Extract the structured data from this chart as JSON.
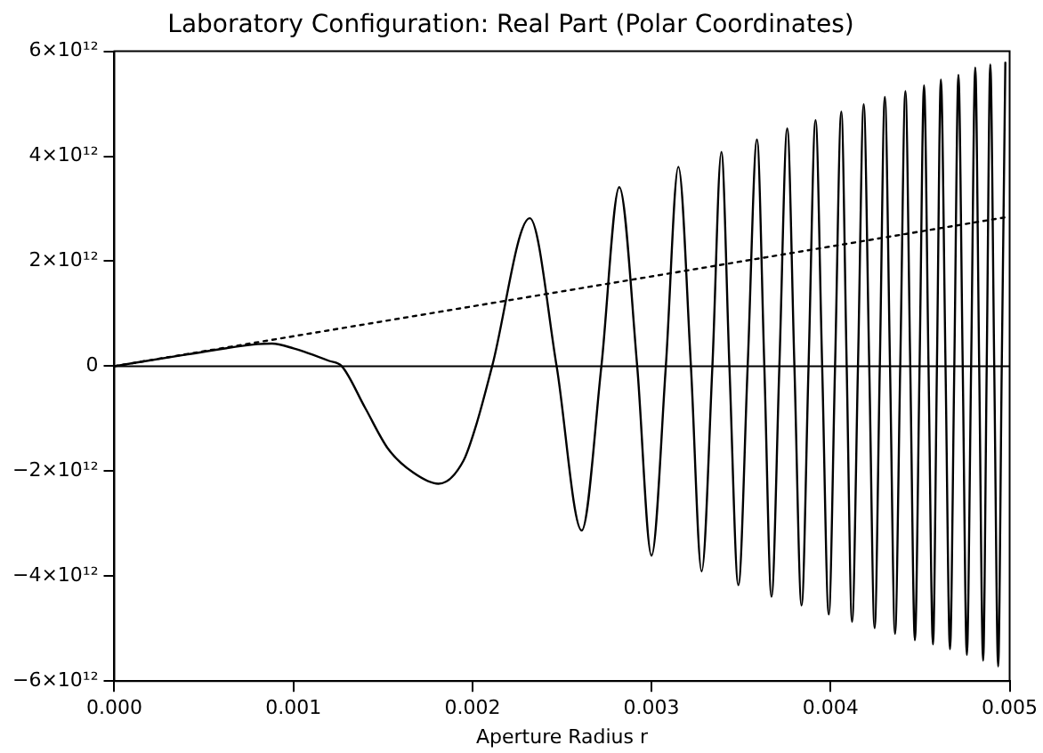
{
  "chart_data": {
    "type": "line",
    "title": "Laboratory Configuration: Real Part (Polar Coordinates)",
    "xlabel": "Aperture Radius r",
    "xlim": [
      0,
      0.005
    ],
    "xticks": [
      {
        "value": 0,
        "label": "0.000"
      },
      {
        "value": 0.001,
        "label": "0.001"
      },
      {
        "value": 0.002,
        "label": "0.002"
      },
      {
        "value": 0.003,
        "label": "0.003"
      },
      {
        "value": 0.004,
        "label": "0.004"
      },
      {
        "value": 0.005,
        "label": "0.005"
      }
    ],
    "ylim": [
      -6000000000000.0,
      6000000000000.0
    ],
    "yticks": [
      {
        "value": -6000000000000.0,
        "label": "−6×10¹²"
      },
      {
        "value": -4000000000000.0,
        "label": "−4×10¹²"
      },
      {
        "value": -2000000000000.0,
        "label": "−2×10¹²"
      },
      {
        "value": 0,
        "label": "0"
      },
      {
        "value": 2000000000000.0,
        "label": "2×10¹²"
      },
      {
        "value": 4000000000000.0,
        "label": "4×10¹²"
      },
      {
        "value": 6000000000000.0,
        "label": "6×10¹²"
      }
    ],
    "grid": false,
    "legend": false,
    "marker": "none",
    "ref_lines": [
      {
        "axis": "y",
        "value": 0,
        "color": "#000000",
        "line_style": "solid"
      }
    ],
    "series": [
      {
        "color": "#000000",
        "line_style": "solid",
        "x": [
          0,
          0.0004,
          0.0008,
          0.00088,
          0.001,
          0.0012,
          0.00127,
          0.0014,
          0.00153,
          0.00167,
          0.00181,
          0.00195,
          0.00202,
          0.00211,
          0.00232,
          0.00247,
          0.00261,
          0.00272,
          0.00282,
          0.00292,
          0.003,
          0.00308,
          0.00315,
          0.00322,
          0.00328,
          0.00334,
          0.00339,
          0.003435,
          0.003485,
          0.003537,
          0.003589,
          0.00363,
          0.00367,
          0.003714,
          0.003758,
          0.003798,
          0.003838,
          0.003877,
          0.003916,
          0.003953,
          0.00399,
          0.004025,
          0.00406,
          0.00409,
          0.00412,
          0.004153,
          0.004185,
          0.004216,
          0.004246,
          0.004275,
          0.004303,
          0.004332,
          0.00436,
          0.004389,
          0.004418,
          0.004445,
          0.004471,
          0.004497,
          0.004522,
          0.004547,
          0.004572,
          0.004594,
          0.004616,
          0.004642,
          0.004667,
          0.004691,
          0.004714,
          0.004738,
          0.004761,
          0.004785,
          0.004808,
          0.00483,
          0.004852,
          0.004872,
          0.004892,
          0.004914,
          0.004936,
          0.004956,
          0.004976
        ],
        "values": [
          0,
          220000000000.0,
          420000000000.0,
          430000000000.0,
          340000000000.0,
          100000000000.0,
          0,
          -790000000000.0,
          -1580000000000.0,
          -2030000000000.0,
          -2240000000000.0,
          -1800000000000.0,
          -1130000000000.0,
          0,
          2820000000000.0,
          0,
          -3130000000000.0,
          0,
          3410000000000.0,
          0,
          -3610000000000.0,
          0,
          3800000000000.0,
          0,
          -3910000000000.0,
          0,
          4080000000000.0,
          0,
          -4170000000000.0,
          0,
          4320000000000.0,
          0,
          -4390000000000.0,
          0,
          4530000000000.0,
          0,
          -4560000000000.0,
          0,
          4690000000000.0,
          0,
          -4730000000000.0,
          0,
          4850000000000.0,
          0,
          -4870000000000.0,
          0,
          4990000000000.0,
          0,
          -4990000000000.0,
          0,
          5130000000000.0,
          0,
          -5100000000000.0,
          0,
          5240000000000.0,
          0,
          -5220000000000.0,
          0,
          5350000000000.0,
          0,
          -5300000000000.0,
          0,
          5460000000000.0,
          0,
          -5390000000000.0,
          0,
          5550000000000.0,
          0,
          -5500000000000.0,
          0,
          5690000000000.0,
          0,
          -5610000000000.0,
          0,
          5750000000000.0,
          0,
          -5720000000000.0,
          0,
          5780000000000.0
        ]
      },
      {
        "color": "#000000",
        "line_style": "dotted",
        "x": [
          0,
          0.005
        ],
        "values": [
          0,
          2850000000000.0
        ]
      }
    ]
  }
}
